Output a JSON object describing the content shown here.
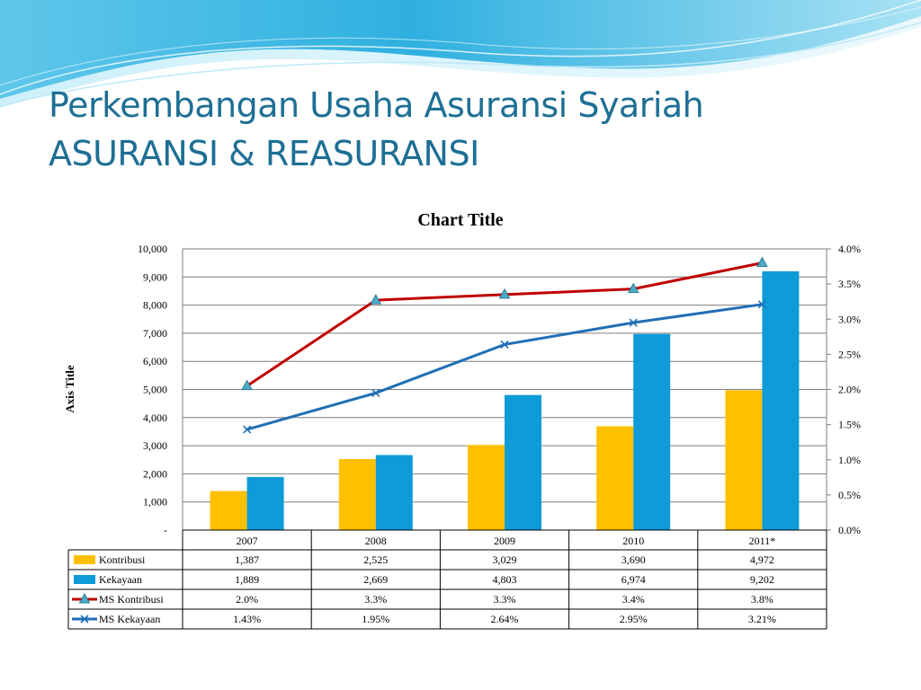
{
  "slide": {
    "title_line1": "Perkembangan Usaha Asuransi Syariah",
    "title_line2": "ASURANSI & REASURANSI"
  },
  "colors": {
    "title": "#1d6f94",
    "kontribusi": "#ffc000",
    "kekayaan": "#0e9bd8",
    "ms_kontribusi": "#c00000",
    "ms_kekayaan": "#1f6fb5",
    "marker_triangle": "#4bacc6"
  },
  "chart_data": {
    "type": "bar",
    "title": "Chart Title",
    "ylabel": "Axis Title",
    "categories": [
      "2007",
      "2008",
      "2009",
      "2010",
      "2011*"
    ],
    "ylim": [
      0,
      10000
    ],
    "y_ticks": [
      "-",
      "1,000",
      "2,000",
      "3,000",
      "4,000",
      "5,000",
      "6,000",
      "7,000",
      "8,000",
      "9,000",
      "10,000"
    ],
    "y2lim": [
      0,
      4.0
    ],
    "y2_ticks": [
      "0.0%",
      "0.5%",
      "1.0%",
      "1.5%",
      "2.0%",
      "2.5%",
      "3.0%",
      "3.5%",
      "4.0%"
    ],
    "grid": true,
    "legend": "data-table",
    "series": [
      {
        "name": "Kontribusi",
        "kind": "bar",
        "axis": "left",
        "values": [
          1387,
          2525,
          3029,
          3690,
          4972
        ],
        "labels": [
          "1,387",
          "2,525",
          "3,029",
          "3,690",
          "4,972"
        ]
      },
      {
        "name": "Kekayaan",
        "kind": "bar",
        "axis": "left",
        "values": [
          1889,
          2669,
          4803,
          6974,
          9202
        ],
        "labels": [
          "1,889",
          "2,669",
          "4,803",
          "6,974",
          "9,202"
        ]
      },
      {
        "name": "MS Kontribusi",
        "kind": "line",
        "axis": "right",
        "marker": "triangle",
        "values": [
          2.05,
          3.27,
          3.35,
          3.43,
          3.8
        ],
        "labels": [
          "2.0%",
          "3.3%",
          "3.3%",
          "3.4%",
          "3.8%"
        ]
      },
      {
        "name": "MS Kekayaan",
        "kind": "line",
        "axis": "right",
        "marker": "x",
        "values": [
          1.43,
          1.95,
          2.64,
          2.95,
          3.21
        ],
        "labels": [
          "1.43%",
          "1.95%",
          "2.64%",
          "2.95%",
          "3.21%"
        ]
      }
    ]
  }
}
